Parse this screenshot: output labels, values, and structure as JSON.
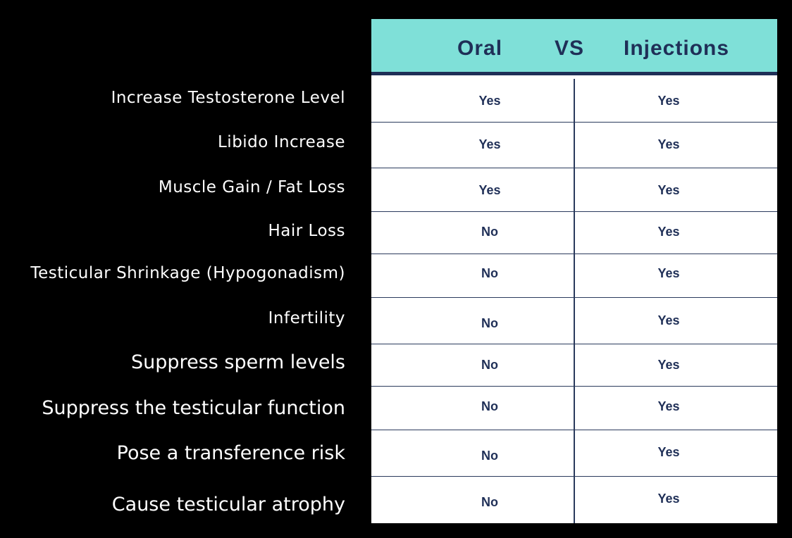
{
  "header": {
    "oral": "Oral",
    "vs": "VS",
    "injections": "Injections"
  },
  "rows": [
    {
      "label": "Increase Testosterone Level",
      "oral": "Yes",
      "injections": "Yes"
    },
    {
      "label": "Libido Increase",
      "oral": "Yes",
      "injections": "Yes"
    },
    {
      "label": "Muscle Gain / Fat Loss",
      "oral": "Yes",
      "injections": "Yes"
    },
    {
      "label": "Hair Loss",
      "oral": "No",
      "injections": "Yes"
    },
    {
      "label": "Testicular Shrinkage (Hypogonadism)",
      "oral": "No",
      "injections": "Yes"
    },
    {
      "label": "Infertility",
      "oral": "No",
      "injections": "Yes"
    },
    {
      "label": "Suppress sperm levels",
      "oral": "No",
      "injections": "Yes"
    },
    {
      "label": "Suppress the testicular function",
      "oral": "No",
      "injections": "Yes"
    },
    {
      "label": "Pose a transference risk",
      "oral": "No",
      "injections": "Yes"
    },
    {
      "label": "Cause testicular atrophy",
      "oral": "No",
      "injections": "Yes"
    }
  ],
  "colors": {
    "background": "#000000",
    "header_bg": "#7fe0d8",
    "text_dark": "#1f2f57",
    "label_text": "#ffffff"
  }
}
